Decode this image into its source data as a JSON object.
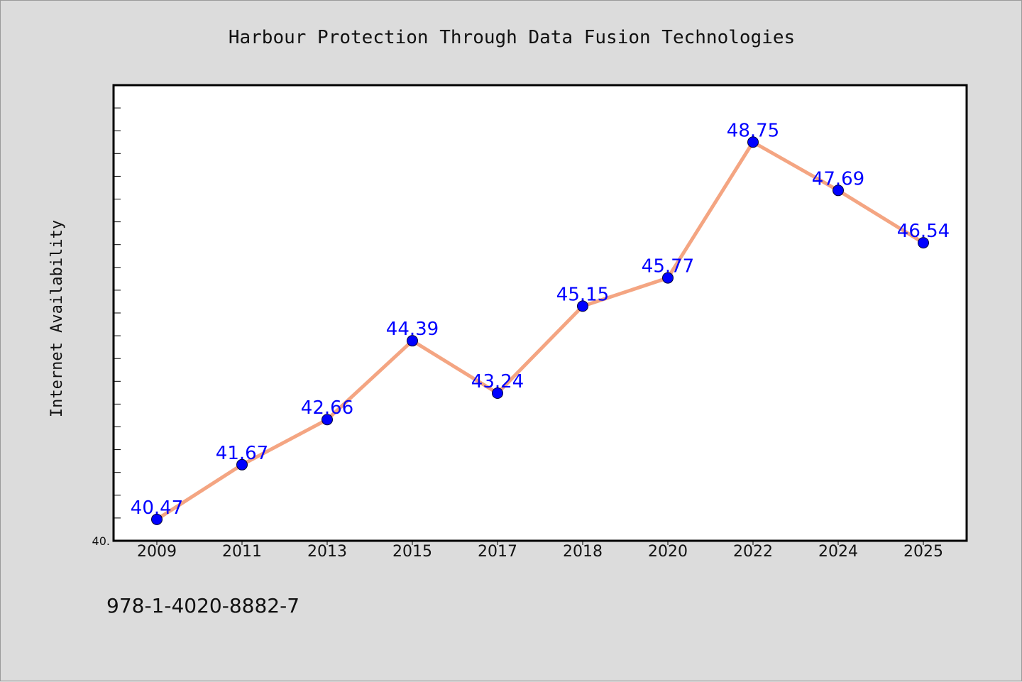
{
  "colors": {
    "background": "#dcdcdc",
    "plot_background": "#ffffff",
    "line": "#f4a582",
    "marker": "#0000ff",
    "label": "#0000ff"
  },
  "footer": {
    "isbn": "978-1-4020-8882-7"
  },
  "chart_data": {
    "type": "line",
    "title": "Harbour Protection Through Data Fusion Technologies",
    "xlabel": "",
    "ylabel": "Internet Availability",
    "ymin_label": "40.",
    "ylim": [
      40.0,
      50.0
    ],
    "grid": false,
    "legend": "none",
    "categories": [
      "2009",
      "2011",
      "2013",
      "2015",
      "2017",
      "2018",
      "2020",
      "2022",
      "2024",
      "2025"
    ],
    "series": [
      {
        "values": [
          40.47,
          41.67,
          42.66,
          44.39,
          43.24,
          45.15,
          45.77,
          48.75,
          47.69,
          46.54
        ],
        "labels": [
          "40.47",
          "41.67",
          "42.66",
          "44.39",
          "43.24",
          "45.15",
          "45.77",
          "48.75",
          "47.69",
          "46.54"
        ]
      }
    ]
  }
}
